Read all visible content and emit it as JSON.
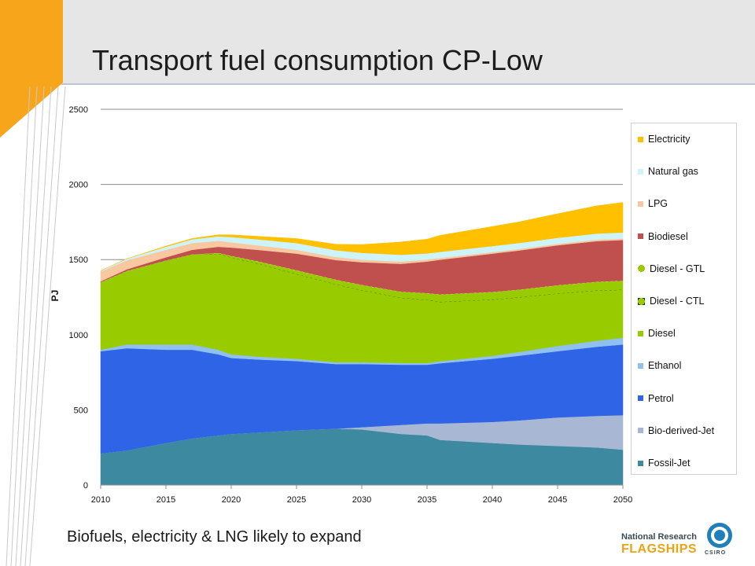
{
  "slide": {
    "title": "Transport fuel consumption CP-Low",
    "subtitle": "Biofuels, electricity & LNG likely to expand",
    "logo_line1": "National Research",
    "logo_line2": "FLAGSHIPS",
    "logo_org": "CSIRO"
  },
  "chart_data": {
    "type": "area",
    "title": "",
    "xlabel": "",
    "ylabel": "PJ",
    "ylim": [
      0,
      2500
    ],
    "xlim": [
      2010,
      2050
    ],
    "yticks": [
      0,
      500,
      1000,
      1500,
      2000,
      2500
    ],
    "xticks": [
      2010,
      2015,
      2020,
      2025,
      2030,
      2035,
      2040,
      2045,
      2050
    ],
    "grid": "horizontal",
    "legend_position": "right",
    "x": [
      2010,
      2012,
      2015,
      2017,
      2019,
      2020,
      2022,
      2025,
      2028,
      2030,
      2033,
      2035,
      2036,
      2040,
      2042,
      2045,
      2048,
      2050
    ],
    "series": [
      {
        "name": "Fossil-Jet",
        "color": "#3d8aa0",
        "values": [
          210,
          230,
          280,
          310,
          330,
          340,
          350,
          365,
          375,
          370,
          340,
          330,
          300,
          280,
          270,
          260,
          250,
          235
        ]
      },
      {
        "name": "Bio-derived-Jet",
        "color": "#a8b8d4",
        "values": [
          0,
          0,
          0,
          0,
          0,
          0,
          0,
          0,
          0,
          15,
          60,
          80,
          110,
          140,
          160,
          190,
          210,
          230
        ]
      },
      {
        "name": "Petrol",
        "color": "#2f64e6",
        "values": [
          680,
          680,
          620,
          590,
          540,
          505,
          485,
          460,
          430,
          420,
          400,
          390,
          400,
          420,
          430,
          440,
          460,
          470
        ]
      },
      {
        "name": "Ethanol",
        "color": "#8fc0f0",
        "values": [
          10,
          25,
          35,
          35,
          30,
          25,
          20,
          15,
          12,
          12,
          12,
          12,
          14,
          20,
          25,
          35,
          40,
          45
        ]
      },
      {
        "name": "Diesel",
        "color": "#99cc00",
        "values": [
          450,
          490,
          560,
          600,
          640,
          640,
          610,
          545,
          490,
          445,
          395,
          375,
          350,
          330,
          325,
          330,
          325,
          320
        ]
      },
      {
        "name": "Diesel - CTL",
        "color": "#99cc00",
        "values": [
          0,
          0,
          0,
          0,
          0,
          5,
          10,
          20,
          30,
          35,
          40,
          45,
          45,
          45,
          40,
          20,
          10,
          0
        ]
      },
      {
        "name": "Diesel - GTL",
        "color": "#99cc00",
        "values": [
          0,
          0,
          0,
          0,
          5,
          10,
          15,
          25,
          30,
          35,
          40,
          45,
          50,
          50,
          50,
          55,
          58,
          60
        ]
      },
      {
        "name": "Biodiesel",
        "color": "#c0504d",
        "values": [
          5,
          10,
          20,
          30,
          40,
          55,
          75,
          110,
          130,
          150,
          185,
          210,
          230,
          255,
          260,
          265,
          270,
          270
        ]
      },
      {
        "name": "LPG",
        "color": "#f9c8a0",
        "values": [
          65,
          60,
          50,
          45,
          40,
          35,
          30,
          25,
          20,
          18,
          15,
          14,
          12,
          10,
          10,
          10,
          10,
          10
        ]
      },
      {
        "name": "Natural gas",
        "color": "#cdf4fa",
        "values": [
          5,
          10,
          20,
          25,
          30,
          35,
          40,
          45,
          45,
          45,
          45,
          40,
          40,
          40,
          40,
          40,
          40,
          40
        ]
      },
      {
        "name": "Electricity",
        "color": "#ffc000",
        "values": [
          0,
          0,
          5,
          5,
          10,
          15,
          20,
          30,
          40,
          55,
          85,
          95,
          110,
          130,
          140,
          160,
          185,
          200
        ]
      }
    ]
  }
}
